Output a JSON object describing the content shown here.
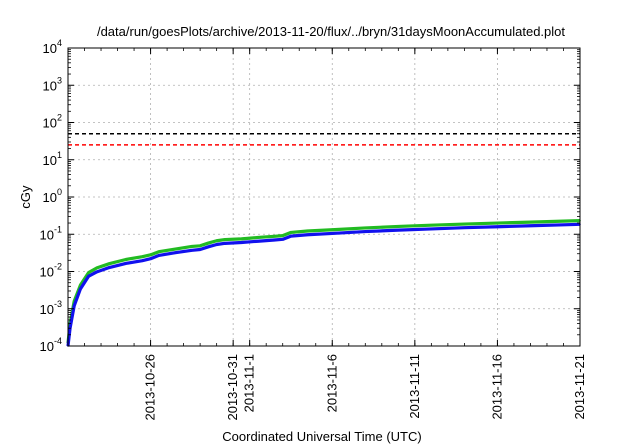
{
  "chart_data": {
    "type": "line",
    "title": "/data/run/goesPlots/archive/2013-11-20/flux/../bryn/31daysMoonAccumulated.plot",
    "xlabel": "Coordinated Universal Time (UTC)",
    "ylabel": "cGy",
    "yscale": "log",
    "ylim": [
      0.0001,
      10000
    ],
    "xlim": [
      "2013-10-21",
      "2013-11-21"
    ],
    "grid": true,
    "y_ticks": [
      {
        "base": "10",
        "exp": "-4",
        "value": 0.0001
      },
      {
        "base": "10",
        "exp": "-3",
        "value": 0.001
      },
      {
        "base": "10",
        "exp": "-2",
        "value": 0.01
      },
      {
        "base": "10",
        "exp": "-1",
        "value": 0.1
      },
      {
        "base": "10",
        "exp": "0",
        "value": 1
      },
      {
        "base": "10",
        "exp": "1",
        "value": 10
      },
      {
        "base": "10",
        "exp": "2",
        "value": 100
      },
      {
        "base": "10",
        "exp": "3",
        "value": 1000
      },
      {
        "base": "10",
        "exp": "4",
        "value": 10000
      }
    ],
    "x_ticks": [
      {
        "date": "2013-10-26",
        "lines": [
          "2013-10-26"
        ]
      },
      {
        "date": "2013-10-31",
        "lines": [
          "2013-10-31"
        ]
      },
      {
        "date": "2013-11-01",
        "lines": [
          "2013-11-1"
        ]
      },
      {
        "date": "2013-11-06",
        "lines": [
          "2013-11-6"
        ]
      },
      {
        "date": "2013-11-11",
        "lines": [
          "2013-11-11"
        ]
      },
      {
        "date": "2013-11-16",
        "lines": [
          "2013-11-16"
        ]
      },
      {
        "date": "2013-11-21",
        "lines": [
          "2013-11-21"
        ]
      }
    ],
    "reference_lines": [
      {
        "value": 50,
        "color": "#000000",
        "style": "dashed"
      },
      {
        "value": 25,
        "color": "#ff0000",
        "style": "dashed"
      }
    ],
    "series": [
      {
        "color": "#22bb22",
        "x": [
          "2013-10-21T00:00",
          "2013-10-21T03:00",
          "2013-10-21T09:00",
          "2013-10-21T18:00",
          "2013-10-22T06:00",
          "2013-10-22T18:00",
          "2013-10-23T12:00",
          "2013-10-24T12:00",
          "2013-10-25T12:00",
          "2013-10-26T00:00",
          "2013-10-26T12:00",
          "2013-10-27T12:00",
          "2013-10-28T12:00",
          "2013-10-29T00:00",
          "2013-10-29T12:00",
          "2013-10-30T00:00",
          "2013-10-30T12:00",
          "2013-10-31T12:00",
          "2013-11-01T12:00",
          "2013-11-02T12:00",
          "2013-11-03T00:00",
          "2013-11-03T12:00",
          "2013-11-04T12:00",
          "2013-11-06T00:00",
          "2013-11-08T00:00",
          "2013-11-10T00:00",
          "2013-11-12T00:00",
          "2013-11-14T00:00",
          "2013-11-16T00:00",
          "2013-11-18T00:00",
          "2013-11-20T00:00",
          "2013-11-21T00:00"
        ],
        "y": [
          0.00012,
          0.0004,
          0.0016,
          0.0043,
          0.0094,
          0.0125,
          0.0162,
          0.021,
          0.025,
          0.028,
          0.034,
          0.04,
          0.047,
          0.049,
          0.058,
          0.067,
          0.072,
          0.075,
          0.082,
          0.088,
          0.092,
          0.112,
          0.122,
          0.132,
          0.148,
          0.162,
          0.175,
          0.188,
          0.2,
          0.212,
          0.225,
          0.232
        ]
      },
      {
        "color": "#1111ee",
        "x": [
          "2013-10-21T00:00",
          "2013-10-21T03:00",
          "2013-10-21T09:00",
          "2013-10-21T18:00",
          "2013-10-22T06:00",
          "2013-10-22T18:00",
          "2013-10-23T12:00",
          "2013-10-24T12:00",
          "2013-10-25T12:00",
          "2013-10-26T00:00",
          "2013-10-26T12:00",
          "2013-10-27T12:00",
          "2013-10-28T12:00",
          "2013-10-29T00:00",
          "2013-10-29T12:00",
          "2013-10-30T00:00",
          "2013-10-30T12:00",
          "2013-10-31T12:00",
          "2013-11-01T12:00",
          "2013-11-02T12:00",
          "2013-11-03T00:00",
          "2013-11-03T12:00",
          "2013-11-04T12:00",
          "2013-11-06T00:00",
          "2013-11-08T00:00",
          "2013-11-10T00:00",
          "2013-11-12T00:00",
          "2013-11-14T00:00",
          "2013-11-16T00:00",
          "2013-11-18T00:00",
          "2013-11-20T00:00",
          "2013-11-21T00:00"
        ],
        "y": [
          0.0001,
          0.0003,
          0.0012,
          0.0034,
          0.0075,
          0.0098,
          0.0128,
          0.0165,
          0.0195,
          0.022,
          0.027,
          0.032,
          0.037,
          0.039,
          0.046,
          0.053,
          0.057,
          0.06,
          0.065,
          0.07,
          0.073,
          0.089,
          0.097,
          0.105,
          0.118,
          0.129,
          0.139,
          0.15,
          0.159,
          0.169,
          0.179,
          0.185
        ]
      }
    ]
  }
}
